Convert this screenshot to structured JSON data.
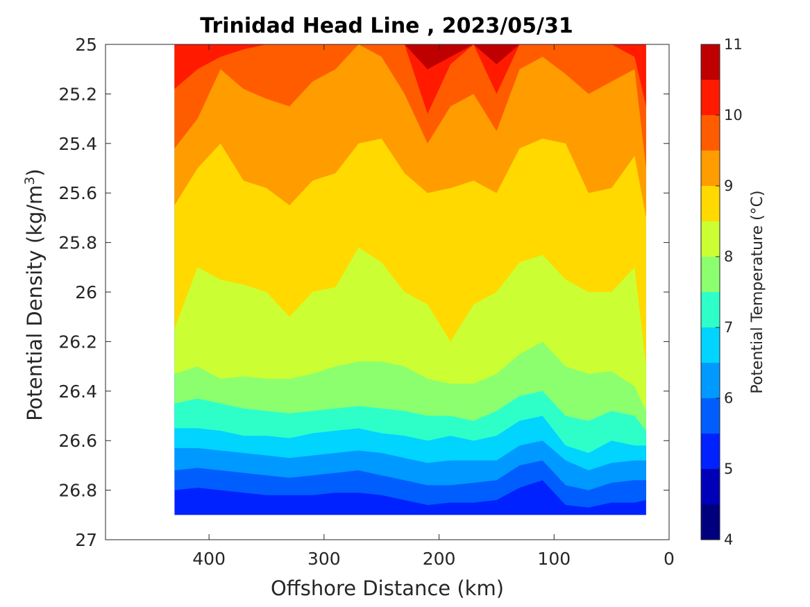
{
  "chart_data": {
    "type": "filled-contour",
    "title": "Trinidad Head Line , 2023/05/31",
    "xlabel": "Offshore Distance (km)",
    "ylabel": "Potential Density (kg/m",
    "ylabel_sup": "3",
    "ylabel_close": ")",
    "xlim": [
      490,
      0
    ],
    "ylim": [
      25,
      27
    ],
    "x_reversed": true,
    "y_reversed": true,
    "x_ticks": [
      400,
      300,
      200,
      100,
      0
    ],
    "x_tick_labels": [
      "400",
      "300",
      "200",
      "100",
      "0"
    ],
    "y_ticks": [
      25,
      25.2,
      25.4,
      25.6,
      25.8,
      26,
      26.2,
      26.4,
      26.6,
      26.8,
      27
    ],
    "y_tick_labels": [
      "25",
      "25.2",
      "25.4",
      "25.6",
      "25.8",
      "26",
      "26.2",
      "26.4",
      "26.6",
      "26.8",
      "27"
    ],
    "colorbar": {
      "label": "Potential Temperature (°C)",
      "range": [
        4,
        11
      ],
      "levels": [
        4,
        4.5,
        5,
        5.5,
        6,
        6.5,
        7,
        7.5,
        8,
        8.5,
        9,
        9.5,
        10,
        10.5,
        11
      ],
      "tick_values": [
        4,
        5,
        6,
        7,
        8,
        9,
        10,
        11
      ],
      "tick_labels": [
        "4",
        "5",
        "6",
        "7",
        "8",
        "9",
        "10",
        "11"
      ],
      "colors": [
        "#00007f",
        "#0000b8",
        "#0022ff",
        "#005eff",
        "#0099ff",
        "#00d4ff",
        "#2effc9",
        "#8cff6f",
        "#ccff33",
        "#ffd900",
        "#ff9c00",
        "#ff5c00",
        "#ff1a00",
        "#bf0000"
      ]
    },
    "data_extent_x": [
      430,
      20
    ],
    "isopycnal_contours": {
      "x": [
        430,
        410,
        390,
        370,
        350,
        330,
        310,
        290,
        270,
        250,
        230,
        210,
        190,
        170,
        150,
        130,
        110,
        90,
        70,
        50,
        30,
        20
      ],
      "T10.5": [
        25.0,
        25.0,
        25.0,
        25.0,
        25.0,
        25.0,
        25.0,
        25.0,
        25.0,
        25.0,
        25.0,
        25.1,
        25.05,
        25.0,
        25.08,
        25.0,
        25.0,
        25.0,
        25.0,
        25.0,
        25.0,
        25.0
      ],
      "T10": [
        25.18,
        25.1,
        25.05,
        25.02,
        25.0,
        25.0,
        25.0,
        25.0,
        25.0,
        25.0,
        25.0,
        25.28,
        25.08,
        25.0,
        25.2,
        25.0,
        25.0,
        25.0,
        25.0,
        25.0,
        25.05,
        25.25
      ],
      "T9.5": [
        25.42,
        25.3,
        25.1,
        25.18,
        25.22,
        25.25,
        25.15,
        25.1,
        25.0,
        25.05,
        25.2,
        25.4,
        25.25,
        25.2,
        25.35,
        25.1,
        25.05,
        25.12,
        25.2,
        25.15,
        25.1,
        25.5
      ],
      "T9": [
        25.65,
        25.5,
        25.4,
        25.55,
        25.58,
        25.65,
        25.55,
        25.52,
        25.4,
        25.38,
        25.52,
        25.6,
        25.58,
        25.55,
        25.6,
        25.42,
        25.38,
        25.4,
        25.6,
        25.58,
        25.45,
        25.7
      ],
      "T8.5": [
        26.15,
        25.9,
        25.95,
        25.97,
        26.0,
        26.1,
        26.0,
        25.98,
        25.82,
        25.88,
        26.0,
        26.05,
        26.2,
        26.05,
        26.0,
        25.88,
        25.85,
        25.95,
        26.0,
        26.0,
        25.9,
        26.3
      ],
      "T8": [
        26.33,
        26.3,
        26.35,
        26.34,
        26.35,
        26.35,
        26.33,
        26.3,
        26.28,
        26.28,
        26.3,
        26.35,
        26.37,
        26.37,
        26.33,
        26.25,
        26.2,
        26.3,
        26.33,
        26.32,
        26.38,
        26.48
      ],
      "T7.5": [
        26.45,
        26.43,
        26.45,
        26.47,
        26.48,
        26.49,
        26.48,
        26.47,
        26.46,
        26.47,
        26.48,
        26.5,
        26.5,
        26.52,
        26.48,
        26.42,
        26.4,
        26.5,
        26.52,
        26.48,
        26.5,
        26.56
      ],
      "T7": [
        26.55,
        26.55,
        26.56,
        26.58,
        26.58,
        26.59,
        26.57,
        26.56,
        26.55,
        26.57,
        26.58,
        26.6,
        26.58,
        26.6,
        26.58,
        26.52,
        26.5,
        26.62,
        26.65,
        26.6,
        26.62,
        26.62
      ],
      "T6.5": [
        26.63,
        26.63,
        26.64,
        26.65,
        26.66,
        26.67,
        26.66,
        26.65,
        26.64,
        26.65,
        26.67,
        26.69,
        26.68,
        26.68,
        26.68,
        26.62,
        26.6,
        26.68,
        26.72,
        26.69,
        26.68,
        26.68
      ],
      "T6": [
        26.72,
        26.71,
        26.72,
        26.73,
        26.74,
        26.75,
        26.74,
        26.73,
        26.72,
        26.74,
        26.76,
        26.78,
        26.78,
        26.77,
        26.76,
        26.7,
        26.68,
        26.78,
        26.8,
        26.77,
        26.76,
        26.76
      ],
      "T5.5": [
        26.8,
        26.79,
        26.8,
        26.81,
        26.82,
        26.82,
        26.82,
        26.81,
        26.81,
        26.82,
        26.84,
        26.86,
        26.85,
        26.85,
        26.84,
        26.79,
        26.76,
        26.86,
        26.87,
        26.85,
        26.85,
        26.84
      ]
    }
  }
}
